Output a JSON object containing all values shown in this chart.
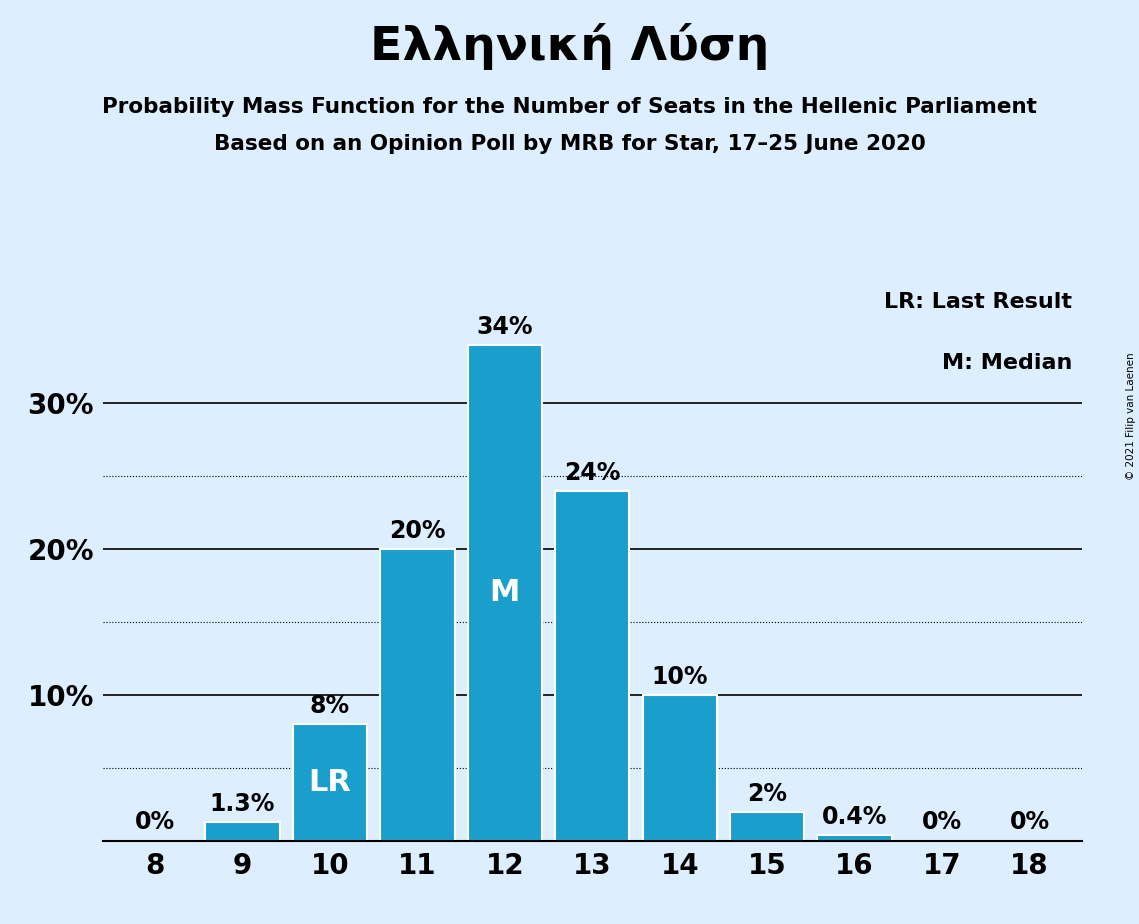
{
  "title": "Ελληνική Λύση",
  "subtitle1": "Probability Mass Function for the Number of Seats in the Hellenic Parliament",
  "subtitle2": "Based on an Opinion Poll by MRB for Star, 17–25 June 2020",
  "copyright": "© 2021 Filip van Laenen",
  "categories": [
    8,
    9,
    10,
    11,
    12,
    13,
    14,
    15,
    16,
    17,
    18
  ],
  "values": [
    0.0,
    1.3,
    8.0,
    20.0,
    34.0,
    24.0,
    10.0,
    2.0,
    0.4,
    0.0,
    0.0
  ],
  "bar_color": "#1a9fcc",
  "background_color": "#ddeeff",
  "bar_labels": [
    "0%",
    "1.3%",
    "8%",
    "20%",
    "34%",
    "24%",
    "10%",
    "2%",
    "0.4%",
    "0%",
    "0%"
  ],
  "median_bar": 12,
  "last_result_bar": 10,
  "yticks": [
    0,
    10,
    20,
    30
  ],
  "dotted_yticks": [
    5,
    15,
    25
  ],
  "legend_text1": "LR: Last Result",
  "legend_text2": "M: Median",
  "title_fontsize": 34,
  "subtitle_fontsize": 15.5,
  "axis_tick_fontsize": 20,
  "bar_label_fontsize": 17,
  "legend_fontsize": 16,
  "inside_label_fontsize": 22,
  "ylim": [
    0,
    38
  ]
}
